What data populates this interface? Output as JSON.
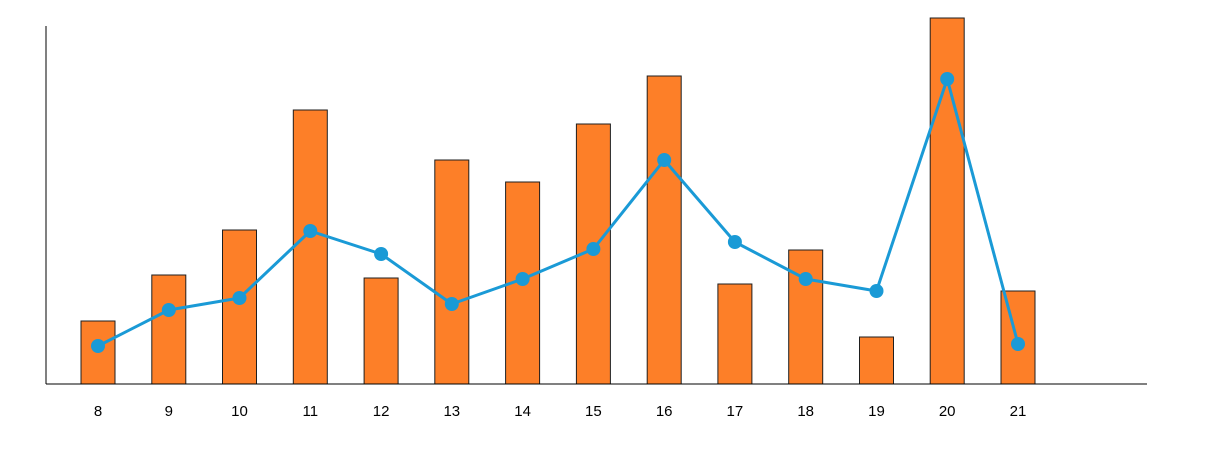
{
  "chart_data": {
    "type": "bar",
    "categories": [
      "8",
      "9",
      "10",
      "11",
      "12",
      "13",
      "14",
      "15",
      "16",
      "17",
      "18",
      "19",
      "20",
      "21"
    ],
    "series": [
      {
        "type": "bar",
        "values": [
          63,
          109,
          154,
          274,
          106,
          224,
          202,
          260,
          308,
          100,
          134,
          47,
          366,
          93
        ]
      },
      {
        "type": "line",
        "values": [
          38,
          74,
          86,
          153,
          130,
          80,
          105,
          135,
          224,
          142,
          105,
          93,
          305,
          40
        ]
      }
    ],
    "ylim": [
      0,
      366
    ],
    "grid": false,
    "legend": "none",
    "colors": {
      "bar_fill": "#fd7f28",
      "bar_stroke": "#1f1f1f",
      "line": "#1a9ad6",
      "marker": "#1a9ad6",
      "axis": "#000000"
    }
  }
}
